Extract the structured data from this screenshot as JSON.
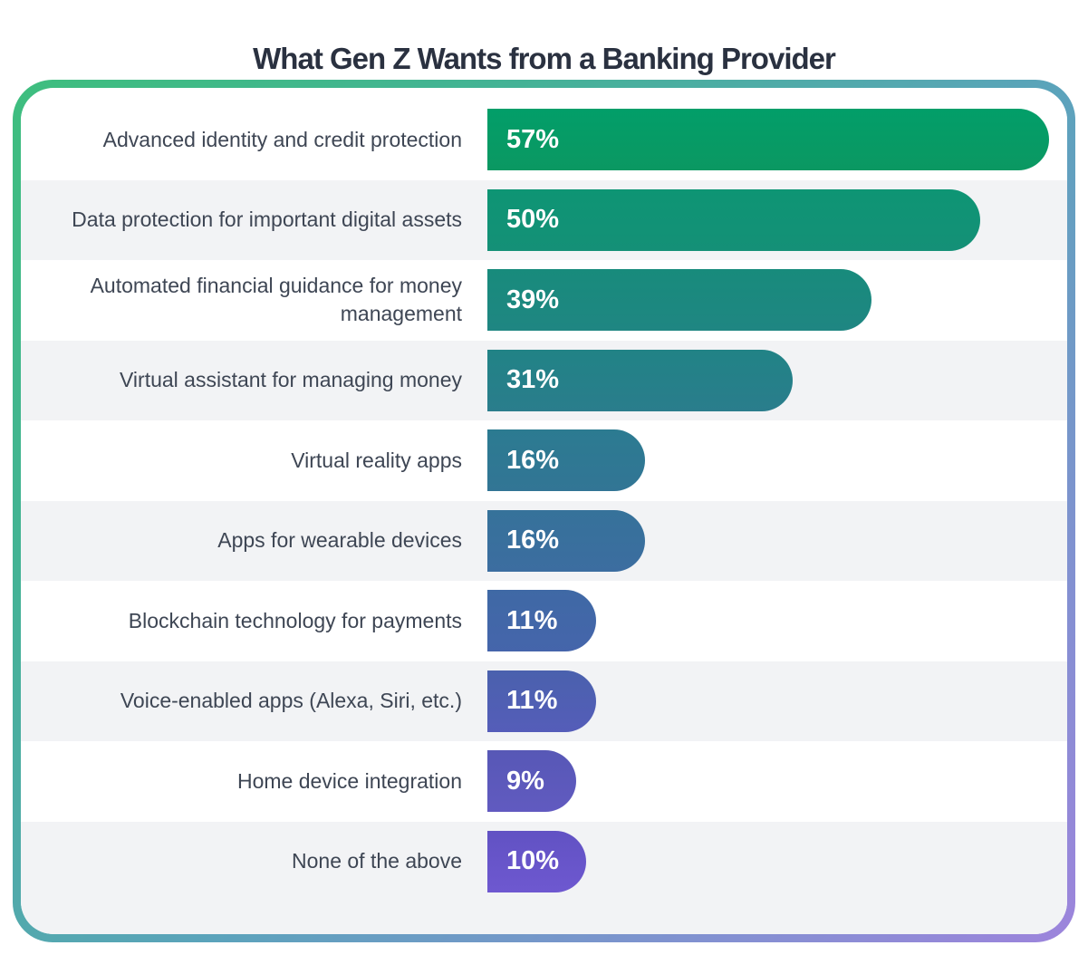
{
  "header": {
    "title_color": "#2a3140"
  },
  "card": {
    "border_gradient": [
      "#3ebe7e",
      "#43b394",
      "#5ba3bb",
      "#8490d2",
      "#9d84dc"
    ],
    "row_background": "#ffffff",
    "row_alt_background": "#f2f3f5",
    "label_color": "#3e4654"
  },
  "chart_data": {
    "type": "bar",
    "orientation": "horizontal",
    "title": "What Gen Z Wants from a Banking Provider",
    "categories": [
      "Advanced identity and credit protection",
      "Data protection for important digital assets",
      "Automated financial guidance for money management",
      "Virtual assistant for managing money",
      "Virtual reality apps",
      "Apps for wearable devices",
      "Blockchain technology for payments",
      "Voice-enabled apps (Alexa, Siri, etc.)",
      "Home device integration",
      "None of the above"
    ],
    "values": [
      57,
      50,
      39,
      31,
      16,
      16,
      11,
      11,
      9,
      10
    ],
    "value_suffix": "%",
    "xlim": [
      0,
      60
    ],
    "grid": false,
    "legend": false,
    "bar_label_color": "#ffffff",
    "bar_colors": [
      [
        "#029e69",
        "#0b9862"
      ],
      [
        "#0e9574",
        "#149077"
      ],
      [
        "#188b7c",
        "#1f8682"
      ],
      [
        "#218386",
        "#2a7d8c"
      ],
      [
        "#2c7b91",
        "#327595"
      ],
      [
        "#36729a",
        "#3c6da0"
      ],
      [
        "#3f69a5",
        "#4565ab"
      ],
      [
        "#4a61ad",
        "#555db9"
      ],
      [
        "#5758b6",
        "#615ac0"
      ],
      [
        "#6152c3",
        "#6e58d0"
      ]
    ]
  }
}
